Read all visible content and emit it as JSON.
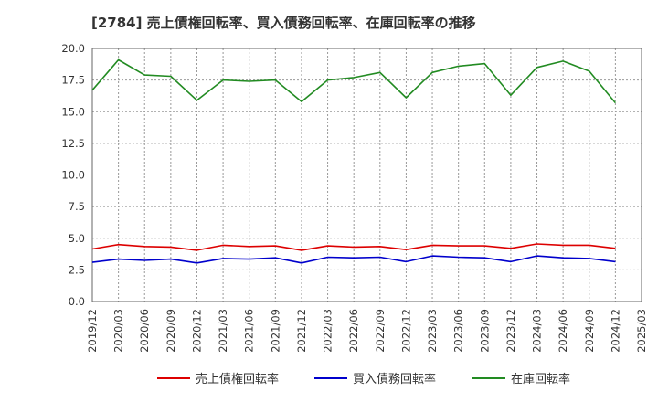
{
  "chart_data": {
    "type": "line",
    "title": "[2784]  売上債権回転率、買入債務回転率、在庫回転率の推移",
    "xlabel": "",
    "ylabel": "",
    "ylim": [
      0,
      20
    ],
    "yticks": [
      0.0,
      2.5,
      5.0,
      7.5,
      10.0,
      12.5,
      15.0,
      17.5,
      20.0
    ],
    "ytick_labels": [
      "0.0",
      "2.5",
      "5.0",
      "7.5",
      "10.0",
      "12.5",
      "15.0",
      "17.5",
      "20.0"
    ],
    "grid": true,
    "legend_position": "bottom",
    "categories": [
      "2019/12",
      "2020/03",
      "2020/06",
      "2020/09",
      "2020/12",
      "2021/03",
      "2021/06",
      "2021/09",
      "2021/12",
      "2022/03",
      "2022/06",
      "2022/09",
      "2022/12",
      "2023/03",
      "2023/06",
      "2023/09",
      "2023/12",
      "2024/03",
      "2024/06",
      "2024/09",
      "2024/12",
      "2025/03"
    ],
    "series": [
      {
        "name": "売上債権回転率",
        "color": "#dd0000",
        "values": [
          4.15,
          4.5,
          4.35,
          4.3,
          4.05,
          4.45,
          4.35,
          4.4,
          4.05,
          4.4,
          4.3,
          4.35,
          4.1,
          4.45,
          4.4,
          4.4,
          4.2,
          4.55,
          4.45,
          4.45,
          4.2,
          null
        ]
      },
      {
        "name": "買入債務回転率",
        "color": "#0000cc",
        "values": [
          3.1,
          3.35,
          3.25,
          3.35,
          3.05,
          3.4,
          3.35,
          3.45,
          3.05,
          3.5,
          3.45,
          3.5,
          3.15,
          3.6,
          3.5,
          3.45,
          3.15,
          3.6,
          3.45,
          3.4,
          3.15,
          null
        ]
      },
      {
        "name": "在庫回転率",
        "color": "#228b22",
        "values": [
          16.7,
          19.1,
          17.9,
          17.8,
          15.9,
          17.5,
          17.4,
          17.5,
          15.8,
          17.5,
          17.7,
          18.1,
          16.1,
          18.1,
          18.6,
          18.8,
          16.3,
          18.5,
          19.0,
          18.2,
          15.7,
          null
        ]
      }
    ]
  }
}
